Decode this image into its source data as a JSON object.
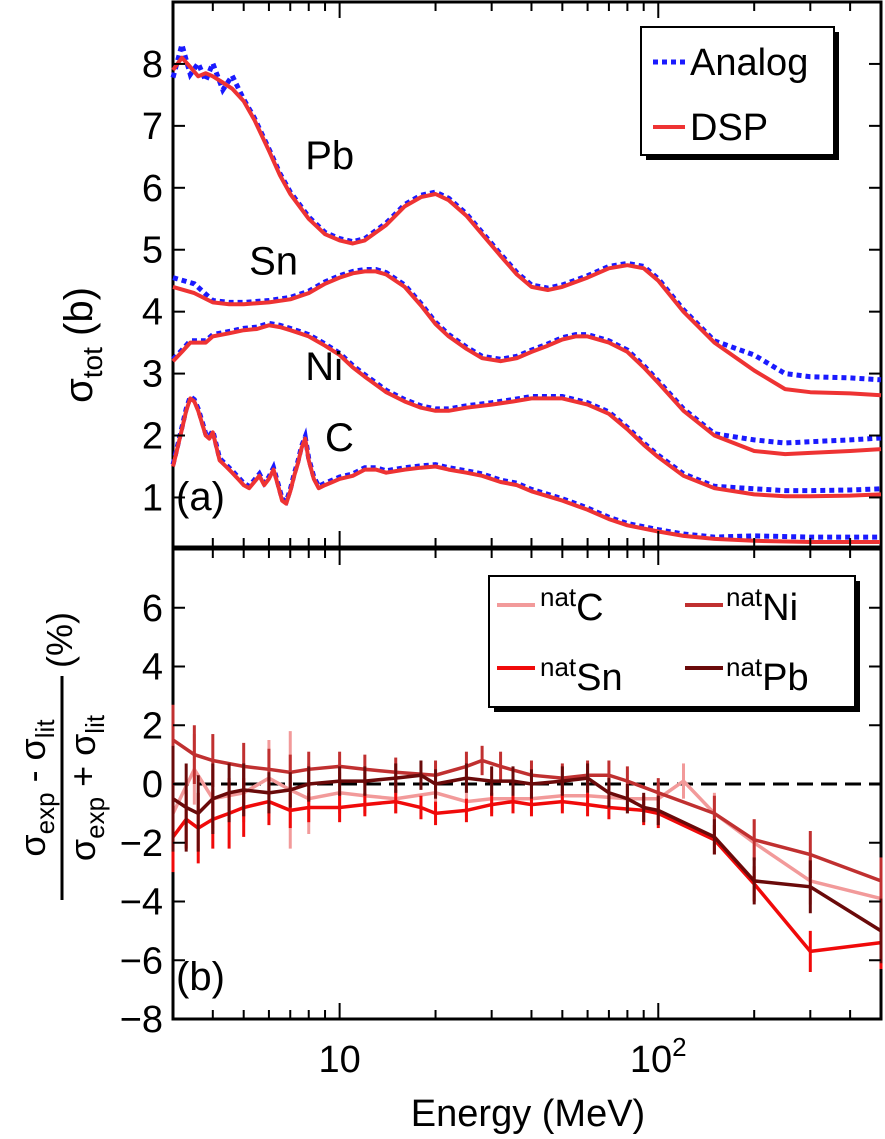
{
  "figure": {
    "xlabel": "Energy (MeV)",
    "x_tick_labels": [
      {
        "value": 10,
        "base": "10",
        "exp": ""
      },
      {
        "value": 100,
        "base": "10",
        "exp": "2"
      }
    ],
    "colors": {
      "analog": "#1a1aff",
      "dsp": "#ee3333",
      "natC": "#f29a9a",
      "natNi": "#c03030",
      "natSn": "#f00a0a",
      "natPb": "#6a0a0a"
    }
  },
  "chart_data": [
    {
      "type": "line",
      "panel_label": "(a)",
      "ylabel": {
        "base": "σ",
        "sub": "tot",
        "unit": "(b)"
      },
      "xscale": "log",
      "xlim": [
        3.0,
        500
      ],
      "ylim": [
        0.2,
        9.0
      ],
      "yticks": [
        1,
        2,
        3,
        4,
        5,
        6,
        7,
        8
      ],
      "legend": {
        "position": "top-right",
        "entries": [
          "Analog",
          "DSP"
        ]
      },
      "annotations": [
        {
          "text": "Pb",
          "x": 7.8,
          "y": 6.3
        },
        {
          "text": "Sn",
          "x": 5.2,
          "y": 4.6
        },
        {
          "text": "Ni",
          "x": 7.8,
          "y": 2.9
        },
        {
          "text": "C",
          "x": 9.0,
          "y": 1.75
        }
      ],
      "series": [
        {
          "name": "Pb",
          "x": [
            3.0,
            3.2,
            3.4,
            3.6,
            3.8,
            4.0,
            4.3,
            4.6,
            5.0,
            5.4,
            6.0,
            6.5,
            7.0,
            8.0,
            9.0,
            10,
            11,
            12,
            14,
            16,
            18,
            20,
            22,
            25,
            28,
            32,
            36,
            40,
            45,
            50,
            60,
            70,
            80,
            90,
            100,
            120,
            150,
            200,
            250,
            300,
            400,
            500
          ],
          "values": [
            7.9,
            8.1,
            7.95,
            7.8,
            7.85,
            7.8,
            7.7,
            7.6,
            7.4,
            7.1,
            6.6,
            6.2,
            5.9,
            5.5,
            5.25,
            5.15,
            5.1,
            5.15,
            5.4,
            5.7,
            5.85,
            5.9,
            5.8,
            5.55,
            5.25,
            4.9,
            4.6,
            4.4,
            4.35,
            4.4,
            4.55,
            4.7,
            4.75,
            4.7,
            4.5,
            4.0,
            3.5,
            3.05,
            2.75,
            2.7,
            2.68,
            2.65
          ]
        },
        {
          "name": "Sn",
          "x": [
            3.0,
            3.5,
            4.0,
            4.5,
            5.0,
            6.0,
            7.0,
            8.0,
            9.0,
            10,
            11,
            12,
            13,
            14,
            16,
            18,
            20,
            22,
            25,
            28,
            32,
            36,
            40,
            45,
            50,
            55,
            60,
            70,
            80,
            90,
            100,
            120,
            150,
            200,
            250,
            300,
            400,
            500
          ],
          "values": [
            4.4,
            4.3,
            4.15,
            4.12,
            4.12,
            4.15,
            4.2,
            4.3,
            4.45,
            4.55,
            4.62,
            4.65,
            4.65,
            4.6,
            4.4,
            4.1,
            3.8,
            3.6,
            3.4,
            3.25,
            3.2,
            3.25,
            3.35,
            3.45,
            3.55,
            3.6,
            3.6,
            3.5,
            3.35,
            3.1,
            2.85,
            2.4,
            2.0,
            1.75,
            1.7,
            1.72,
            1.75,
            1.78
          ]
        },
        {
          "name": "Ni",
          "x": [
            3.0,
            3.2,
            3.4,
            3.6,
            3.8,
            4.0,
            4.5,
            5.0,
            5.5,
            6.0,
            6.5,
            7.0,
            7.5,
            8.0,
            9.0,
            10,
            11,
            12,
            14,
            16,
            18,
            20,
            22,
            25,
            30,
            35,
            40,
            45,
            50,
            60,
            70,
            80,
            90,
            100,
            120,
            150,
            200,
            250,
            300,
            400,
            500
          ],
          "values": [
            3.2,
            3.35,
            3.5,
            3.5,
            3.5,
            3.6,
            3.65,
            3.7,
            3.72,
            3.78,
            3.75,
            3.7,
            3.65,
            3.6,
            3.45,
            3.3,
            3.1,
            2.95,
            2.7,
            2.55,
            2.45,
            2.4,
            2.4,
            2.45,
            2.5,
            2.55,
            2.6,
            2.6,
            2.6,
            2.5,
            2.35,
            2.1,
            1.85,
            1.65,
            1.35,
            1.15,
            1.05,
            1.02,
            1.02,
            1.03,
            1.05
          ]
        },
        {
          "name": "C",
          "x": [
            3.0,
            3.1,
            3.2,
            3.3,
            3.4,
            3.5,
            3.6,
            3.7,
            3.8,
            3.9,
            4.0,
            4.2,
            4.4,
            4.6,
            4.8,
            5.0,
            5.2,
            5.4,
            5.6,
            5.8,
            6.0,
            6.2,
            6.4,
            6.6,
            6.8,
            7.0,
            7.2,
            7.4,
            7.6,
            7.8,
            8.0,
            8.3,
            8.6,
            9.0,
            9.5,
            10,
            11,
            12,
            13,
            14,
            16,
            18,
            20,
            22,
            25,
            28,
            32,
            36,
            40,
            50,
            60,
            70,
            80,
            100,
            120,
            150,
            200,
            300,
            400,
            500
          ],
          "values": [
            1.5,
            1.8,
            2.1,
            2.4,
            2.6,
            2.55,
            2.4,
            2.2,
            2.0,
            1.95,
            2.05,
            1.6,
            1.5,
            1.4,
            1.3,
            1.2,
            1.15,
            1.25,
            1.35,
            1.2,
            1.3,
            1.45,
            1.2,
            0.95,
            0.9,
            1.1,
            1.35,
            1.55,
            1.8,
            1.95,
            1.6,
            1.3,
            1.15,
            1.2,
            1.25,
            1.3,
            1.35,
            1.45,
            1.45,
            1.4,
            1.45,
            1.48,
            1.5,
            1.45,
            1.4,
            1.35,
            1.25,
            1.2,
            1.1,
            0.95,
            0.8,
            0.65,
            0.55,
            0.45,
            0.38,
            0.33,
            0.3,
            0.28,
            0.28,
            0.28
          ]
        }
      ]
    },
    {
      "type": "line",
      "panel_label": "(b)",
      "ylabel": {
        "num_a": "σ",
        "num_a_sub": "exp",
        "num_op": " - ",
        "num_b": "σ",
        "num_b_sub": "lit",
        "den_a": "σ",
        "den_a_sub": "exp",
        "den_op": " + ",
        "den_b": "σ",
        "den_b_sub": "lit",
        "unit": "(%)"
      },
      "xscale": "log",
      "xlim": [
        3.0,
        500
      ],
      "ylim": [
        -8,
        8
      ],
      "yticks": [
        -8,
        -6,
        -4,
        -2,
        0,
        2,
        4,
        6
      ],
      "ytick_labels": [
        "−8",
        "−6",
        "−4",
        "−2",
        "0",
        "2",
        "4",
        "6"
      ],
      "legend": {
        "position": "top-right",
        "columns": 2,
        "entries": [
          {
            "series": "natC",
            "sup": "nat",
            "el": "C"
          },
          {
            "series": "natNi",
            "sup": "nat",
            "el": "Ni"
          },
          {
            "series": "natSn",
            "sup": "nat",
            "el": "Sn"
          },
          {
            "series": "natPb",
            "sup": "nat",
            "el": "Pb"
          }
        ]
      },
      "reference_line": 0,
      "series": [
        {
          "name": "natC",
          "x": [
            3.0,
            3.5,
            4.0,
            5.0,
            6.0,
            7.0,
            8.0,
            10,
            12,
            15,
            20,
            25,
            30,
            40,
            50,
            60,
            80,
            100,
            120,
            150,
            200,
            300,
            500
          ],
          "values": [
            -1.0,
            0.5,
            -0.5,
            -0.3,
            0.2,
            -0.2,
            -0.5,
            -0.3,
            -0.4,
            -0.5,
            -0.3,
            -0.6,
            -0.5,
            -0.5,
            -0.4,
            -0.4,
            -0.5,
            -0.5,
            0.1,
            -1.0,
            -2.0,
            -3.3,
            -3.9
          ],
          "errors": [
            1.5,
            1.2,
            1.0,
            1.0,
            1.3,
            2.0,
            1.2,
            0.7,
            0.6,
            0.5,
            0.5,
            0.5,
            0.5,
            0.5,
            0.5,
            0.5,
            0.5,
            0.5,
            0.6,
            0.7,
            0.8,
            0.8,
            0.8
          ]
        },
        {
          "name": "natNi",
          "x": [
            3.0,
            3.5,
            4.0,
            5.0,
            6.0,
            7.0,
            8.0,
            10,
            12,
            15,
            20,
            25,
            28,
            32,
            40,
            50,
            60,
            70,
            80,
            100,
            150,
            200,
            300,
            500
          ],
          "values": [
            1.5,
            1.0,
            0.8,
            0.6,
            0.5,
            0.4,
            0.5,
            0.6,
            0.5,
            0.4,
            0.3,
            0.6,
            0.8,
            0.6,
            0.3,
            0.2,
            0.3,
            0.3,
            0.1,
            -0.3,
            -1.0,
            -1.9,
            -2.4,
            -3.3
          ],
          "errors": [
            1.2,
            1.0,
            0.9,
            0.8,
            0.7,
            0.6,
            0.6,
            0.5,
            0.5,
            0.5,
            0.5,
            0.5,
            0.5,
            0.5,
            0.5,
            0.5,
            0.5,
            0.5,
            0.5,
            0.5,
            0.6,
            0.7,
            0.8,
            0.8
          ]
        },
        {
          "name": "natSn",
          "x": [
            3.0,
            3.3,
            3.6,
            4.0,
            4.5,
            5.0,
            6.0,
            7.0,
            8.0,
            10,
            12,
            15,
            18,
            20,
            25,
            30,
            35,
            40,
            50,
            60,
            70,
            90,
            100,
            150,
            200,
            300,
            500
          ],
          "values": [
            -1.8,
            -1.2,
            -1.5,
            -1.2,
            -1.0,
            -0.8,
            -0.6,
            -0.9,
            -0.8,
            -0.8,
            -0.7,
            -0.6,
            -0.8,
            -1.0,
            -0.9,
            -0.7,
            -0.6,
            -0.7,
            -0.6,
            -0.7,
            -0.8,
            -0.9,
            -1.0,
            -1.9,
            -3.4,
            -5.7,
            -5.4
          ],
          "errors": [
            1.2,
            1.0,
            1.2,
            1.0,
            1.2,
            1.0,
            0.8,
            0.6,
            0.5,
            0.5,
            0.4,
            0.4,
            0.4,
            0.4,
            0.4,
            0.4,
            0.4,
            0.4,
            0.4,
            0.4,
            0.4,
            0.5,
            0.5,
            0.5,
            0.6,
            0.7,
            0.9
          ]
        },
        {
          "name": "natPb",
          "x": [
            3.0,
            3.3,
            3.6,
            4.0,
            4.5,
            5.0,
            6.0,
            7.0,
            8.0,
            10,
            12,
            15,
            18,
            20,
            25,
            30,
            35,
            40,
            50,
            60,
            70,
            80,
            90,
            100,
            150,
            200,
            300,
            500
          ],
          "values": [
            -0.5,
            -0.8,
            -1.0,
            -0.5,
            -0.3,
            -0.2,
            -0.3,
            -0.2,
            0.0,
            0.1,
            0.1,
            0.2,
            0.3,
            0.0,
            0.2,
            0.1,
            0.1,
            0.0,
            0.1,
            0.2,
            -0.3,
            -0.5,
            -0.8,
            -0.9,
            -1.8,
            -3.3,
            -3.5,
            -5.0
          ],
          "errors": [
            1.8,
            1.5,
            1.3,
            1.2,
            1.0,
            0.9,
            0.7,
            0.6,
            0.6,
            0.5,
            0.5,
            0.5,
            0.5,
            0.5,
            0.5,
            0.5,
            0.5,
            0.5,
            0.5,
            0.5,
            0.5,
            0.5,
            0.5,
            0.5,
            0.6,
            0.8,
            0.9,
            1.1
          ]
        }
      ]
    }
  ]
}
